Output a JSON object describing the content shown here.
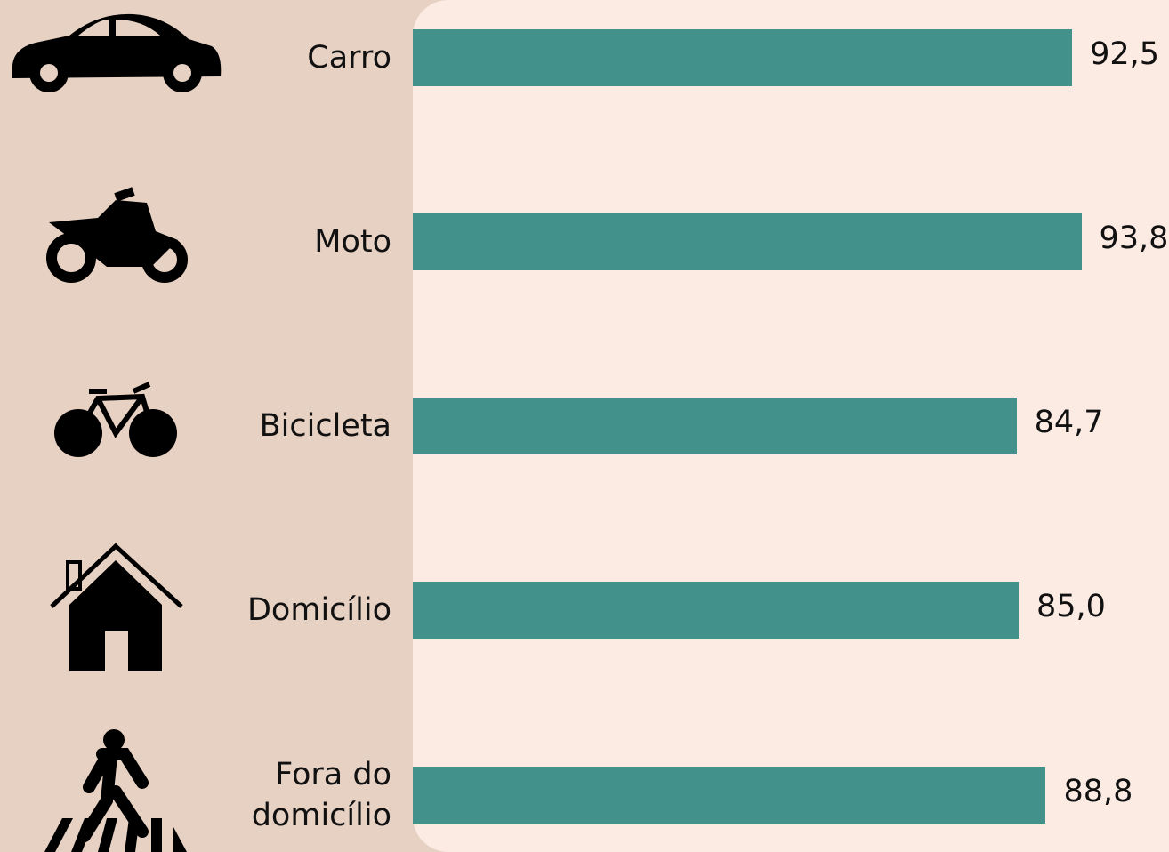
{
  "chart_data": {
    "type": "bar",
    "orientation": "horizontal",
    "categories": [
      "Carro",
      "Moto",
      "Bicicleta",
      "Domicílio",
      "Fora do domicílio"
    ],
    "values": [
      92.5,
      93.8,
      84.7,
      85.0,
      88.8
    ],
    "value_labels": [
      "92,5",
      "93,8",
      "84,7",
      "85,0",
      "88,8"
    ],
    "color": "#42918b"
  }
}
